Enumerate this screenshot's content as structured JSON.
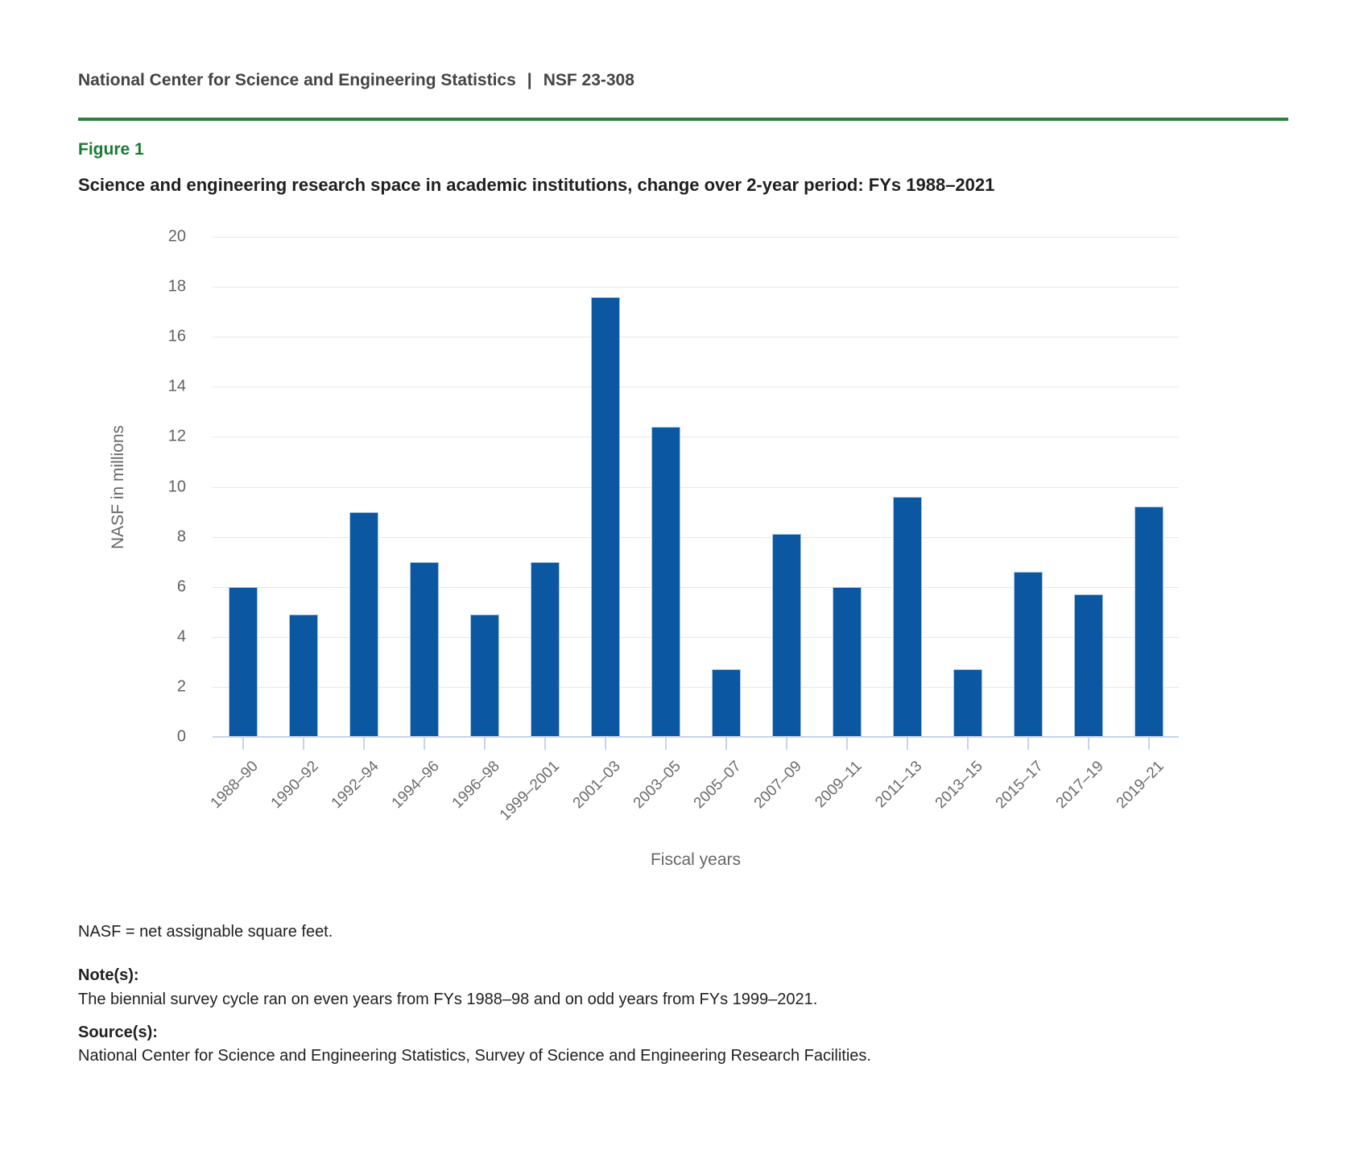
{
  "header": {
    "org": "National Center for Science and Engineering Statistics",
    "separator": "|",
    "report_number": "NSF 23-308"
  },
  "figure": {
    "label": "Figure 1"
  },
  "chart_data": {
    "type": "bar",
    "title": "Science and engineering research space in academic institutions, change over 2-year period: FYs 1988–2021",
    "categories": [
      "1988–90",
      "1990–92",
      "1992–94",
      "1994–96",
      "1996–98",
      "1999–2001",
      "2001–03",
      "2003–05",
      "2005–07",
      "2007–09",
      "2009–11",
      "2011–13",
      "2013–15",
      "2015–17",
      "2017–19",
      "2019–21"
    ],
    "values": [
      6.0,
      4.9,
      9.0,
      7.0,
      4.9,
      7.0,
      17.6,
      12.4,
      2.7,
      8.1,
      6.0,
      9.6,
      2.7,
      6.6,
      5.7,
      9.2
    ],
    "xlabel": "Fiscal years",
    "ylabel": "NASF in millions",
    "ylim": [
      0,
      20
    ],
    "ytick_step": 2,
    "grid": true,
    "legend": "none",
    "bar_color": "#0b57a2"
  },
  "footnotes": {
    "abbreviation": "NASF = net assignable square feet.",
    "notes_label": "Note(s):",
    "notes": "The biennial survey cycle ran on even years from FYs 1988–98 and on odd years from FYs 1999–2021.",
    "sources_label": "Source(s):",
    "sources": "National Center for Science and Engineering Statistics, Survey of Science and Engineering Research Facilities."
  },
  "colors": {
    "rule_green": "#2f8040",
    "figure_green": "#1a7a33",
    "bar_blue": "#0b57a2",
    "gridline": "#e7e7e7",
    "axis_line": "#c8d3e9",
    "axis_text": "#616161",
    "axis_title": "#666666",
    "xlabel_text": "#6b6b6b",
    "text_header": "#444444",
    "text_dark": "#1f1f1f"
  }
}
